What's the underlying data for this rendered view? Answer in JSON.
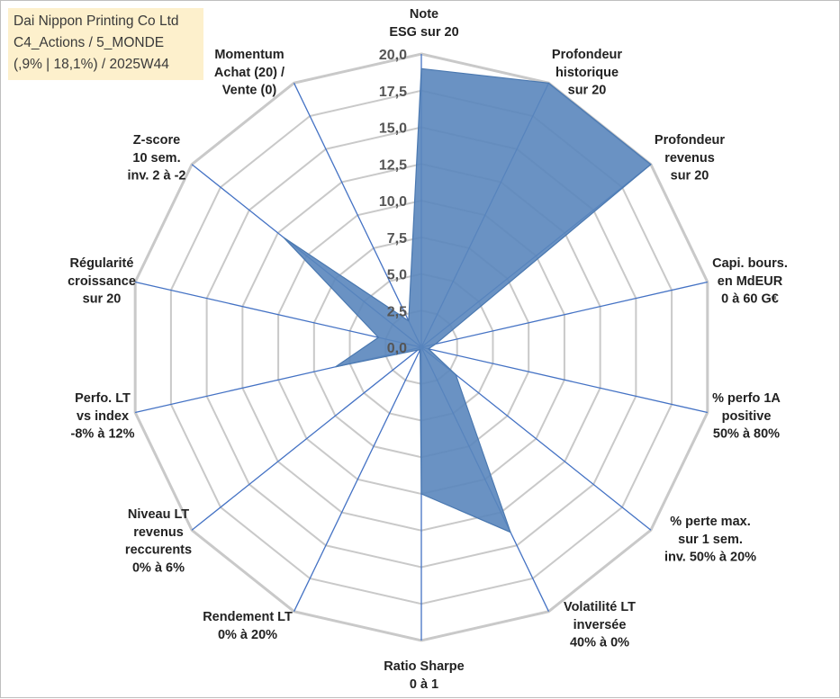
{
  "title": {
    "line1": "Dai Nippon Printing Co Ltd",
    "line2": "C4_Actions / 5_MONDE",
    "line3": "(,9% | 18,1%) / 2025W44"
  },
  "chart_data": {
    "type": "radar",
    "axis_range": [
      0,
      20
    ],
    "ticks": [
      "0,0",
      "2,5",
      "5,0",
      "7,5",
      "10,0",
      "12,5",
      "15,0",
      "17,5",
      "20,0"
    ],
    "colors": {
      "fill": "#5a86bd",
      "stroke": "#4a78b0",
      "spoke": "#4472c4",
      "grid": "#c9c9c9"
    },
    "axes": [
      {
        "label": [
          "Note",
          "ESG sur 20"
        ],
        "value": 19.0
      },
      {
        "label": [
          "Profondeur",
          "historique",
          "sur 20"
        ],
        "value": 20.0
      },
      {
        "label": [
          "Profondeur",
          "revenus",
          "sur 20"
        ],
        "value": 20.0
      },
      {
        "label": [
          "Capi. bours.",
          "en MdEUR",
          "0 à 60 G€"
        ],
        "value": 1.0
      },
      {
        "label": [
          "% perfo 1A",
          "positive",
          "50% à 80%"
        ],
        "value": 0.5
      },
      {
        "label": [
          "% perte max.",
          "sur 1 sem.",
          "inv. 50% à 20%"
        ],
        "value": 3.0
      },
      {
        "label": [
          "Volatilité LT",
          "inversée",
          "40% à 0%"
        ],
        "value": 14.0
      },
      {
        "label": [
          "Ratio Sharpe",
          "0 à 1"
        ],
        "value": 10.0
      },
      {
        "label": [
          "Rendement LT",
          "0% à 20%"
        ],
        "value": 0.2
      },
      {
        "label": [
          "Niveau LT",
          "revenus",
          "reccurents",
          "0% à 6%"
        ],
        "value": 0.3
      },
      {
        "label": [
          "Perfo. LT",
          "vs index",
          "-8% à 12%"
        ],
        "value": 6.0
      },
      {
        "label": [
          "Régularité",
          "croissance",
          "sur 20"
        ],
        "value": 3.0
      },
      {
        "label": [
          "Z-score",
          "10 sem.",
          "inv. 2 à -2"
        ],
        "value": 12.0
      },
      {
        "label": [
          "Momentum",
          "Achat (20) /",
          "Vente (0)"
        ],
        "value": 2.0
      }
    ]
  }
}
